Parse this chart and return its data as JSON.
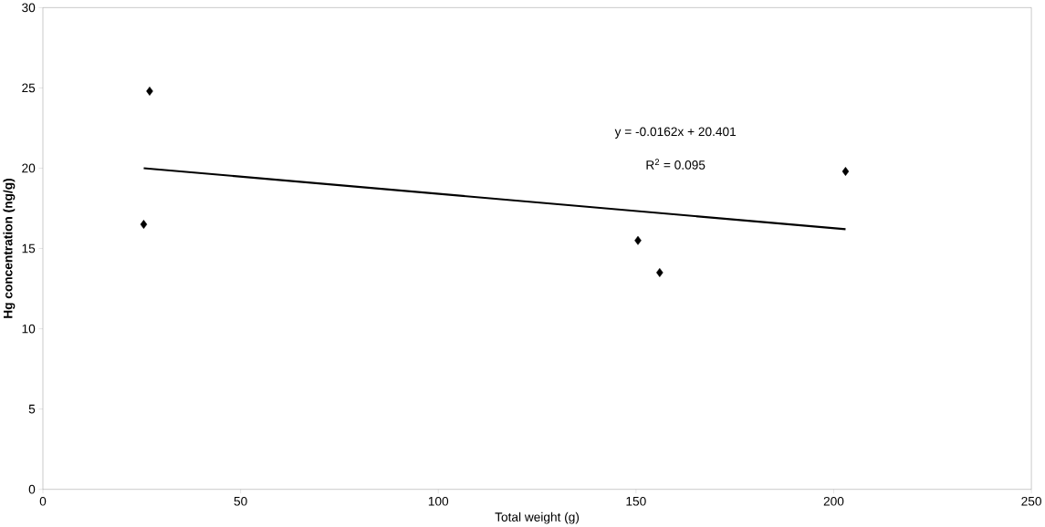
{
  "chart_data": {
    "type": "scatter",
    "xlabel": "Total weight (g)",
    "ylabel": "Hg concentration (ng/g)",
    "series": [
      {
        "color": "#000000",
        "marker": "diamond",
        "x": [
          27,
          25.5,
          150.5,
          156,
          203
        ],
        "values": [
          24.8,
          16.5,
          15.5,
          13.5,
          19.8
        ]
      },
      {
        "type": "line",
        "color": "#000000",
        "marker": "none",
        "line_style": "solid",
        "x": [
          25.5,
          203
        ],
        "values": [
          20.0,
          16.2
        ]
      }
    ],
    "xlim": [
      0,
      250
    ],
    "ylim": [
      0,
      30
    ],
    "xticks": [
      0,
      50,
      100,
      150,
      200,
      250
    ],
    "yticks": [
      0,
      5,
      10,
      15,
      20,
      25,
      30
    ],
    "grid": false,
    "annotations": [
      "y = -0.0162x + 20.401",
      "R$^{2}$ = 0.095"
    ]
  }
}
